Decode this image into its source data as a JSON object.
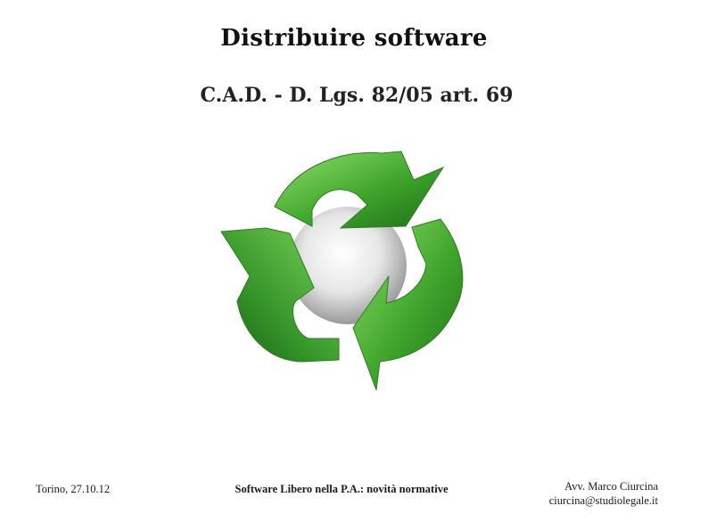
{
  "slide": {
    "title": "Distribuire software",
    "subtitle": "C.A.D. - D. Lgs. 82/05 art. 69",
    "image": {
      "icon": "recycle-icon",
      "colors": {
        "green_light": "#7cd35a",
        "green_mid": "#3fa52c",
        "green_dark": "#1f6e17",
        "sphere": "#e8e8e8"
      }
    }
  },
  "footer": {
    "place_date": "Torino, 27.10.12",
    "event": "Software Libero nella P.A.: novità normative",
    "author": "Avv. Marco Ciurcina",
    "email": "ciurcina@studiolegale.it"
  }
}
